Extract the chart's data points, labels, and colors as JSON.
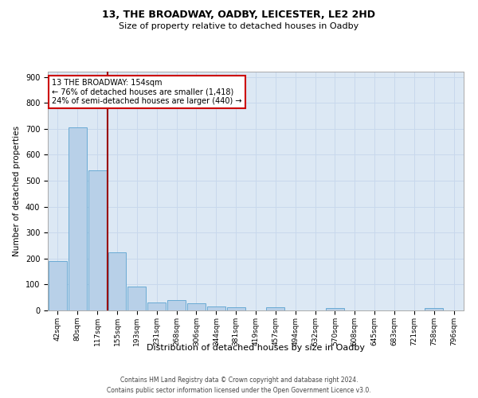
{
  "title": "13, THE BROADWAY, OADBY, LEICESTER, LE2 2HD",
  "subtitle": "Size of property relative to detached houses in Oadby",
  "xlabel": "Distribution of detached houses by size in Oadby",
  "ylabel": "Number of detached properties",
  "categories": [
    "42sqm",
    "80sqm",
    "117sqm",
    "155sqm",
    "193sqm",
    "231sqm",
    "268sqm",
    "306sqm",
    "344sqm",
    "381sqm",
    "419sqm",
    "457sqm",
    "494sqm",
    "532sqm",
    "570sqm",
    "608sqm",
    "645sqm",
    "683sqm",
    "721sqm",
    "758sqm",
    "796sqm"
  ],
  "values": [
    190,
    706,
    540,
    225,
    91,
    32,
    40,
    27,
    15,
    11,
    1,
    11,
    1,
    1,
    8,
    1,
    1,
    1,
    1,
    10,
    1
  ],
  "bar_color": "#b8d0e8",
  "bar_edge_color": "#6aaad4",
  "vline_color": "#990000",
  "annotation_line1": "13 THE BROADWAY: 154sqm",
  "annotation_line2": "← 76% of detached houses are smaller (1,418)",
  "annotation_line3": "24% of semi-detached houses are larger (440) →",
  "annotation_box_facecolor": "#ffffff",
  "annotation_box_edgecolor": "#cc0000",
  "ylim": [
    0,
    920
  ],
  "yticks": [
    0,
    100,
    200,
    300,
    400,
    500,
    600,
    700,
    800,
    900
  ],
  "grid_color": "#c8d8ec",
  "plot_bg_color": "#dce8f4",
  "fig_bg_color": "#ffffff",
  "footer1": "Contains HM Land Registry data © Crown copyright and database right 2024.",
  "footer2": "Contains public sector information licensed under the Open Government Licence v3.0.",
  "title_fontsize": 9,
  "subtitle_fontsize": 8,
  "ylabel_fontsize": 7.5,
  "xlabel_fontsize": 8,
  "tick_fontsize": 6.5,
  "ytick_fontsize": 7,
  "footer_fontsize": 5.5,
  "annotation_fontsize": 7
}
